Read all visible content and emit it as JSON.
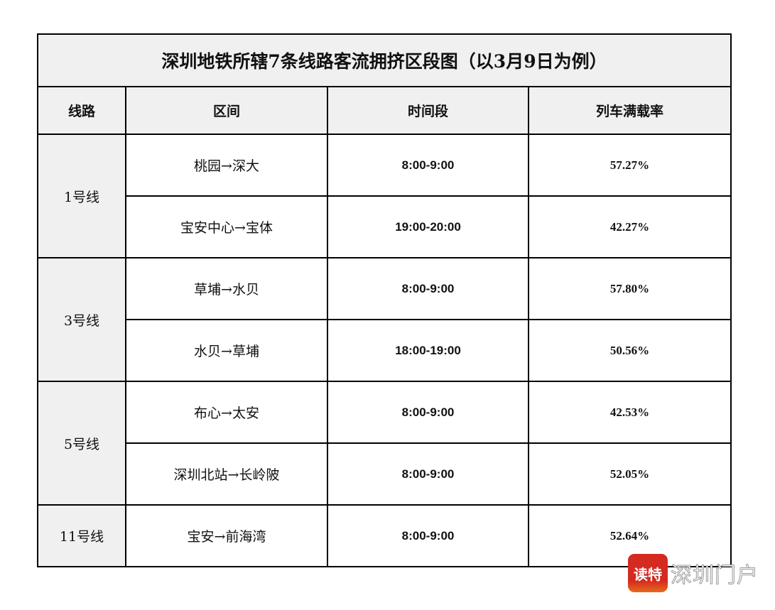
{
  "title": "深圳地铁所辖7条线路客流拥挤区段图（以3月9日为例）",
  "headers": [
    "线路",
    "区间",
    "时间段",
    "列车满载率"
  ],
  "groups": [
    {
      "line": "1号线",
      "rows": [
        {
          "section": "桃园→深大",
          "time": "8:00-9:00",
          "rate": "57.27%"
        },
        {
          "section": "宝安中心→宝体",
          "time": "19:00-20:00",
          "rate": "42.27%"
        }
      ]
    },
    {
      "line": "3号线",
      "rows": [
        {
          "section": "草埔→水贝",
          "time": "8:00-9:00",
          "rate": "57.80%"
        },
        {
          "section": "水贝→草埔",
          "time": "18:00-19:00",
          "rate": "50.56%"
        }
      ]
    },
    {
      "line": "5号线",
      "rows": [
        {
          "section": "布心→太安",
          "time": "8:00-9:00",
          "rate": "42.53%"
        },
        {
          "section": "深圳北站→长岭陂",
          "time": "8:00-9:00",
          "rate": "52.05%"
        }
      ]
    },
    {
      "line": "11号线",
      "rows": [
        {
          "section": "宝安→前海湾",
          "time": "8:00-9:00",
          "rate": "52.64%"
        }
      ]
    }
  ],
  "watermark": {
    "badge": "读特",
    "brand": "深圳门户"
  }
}
